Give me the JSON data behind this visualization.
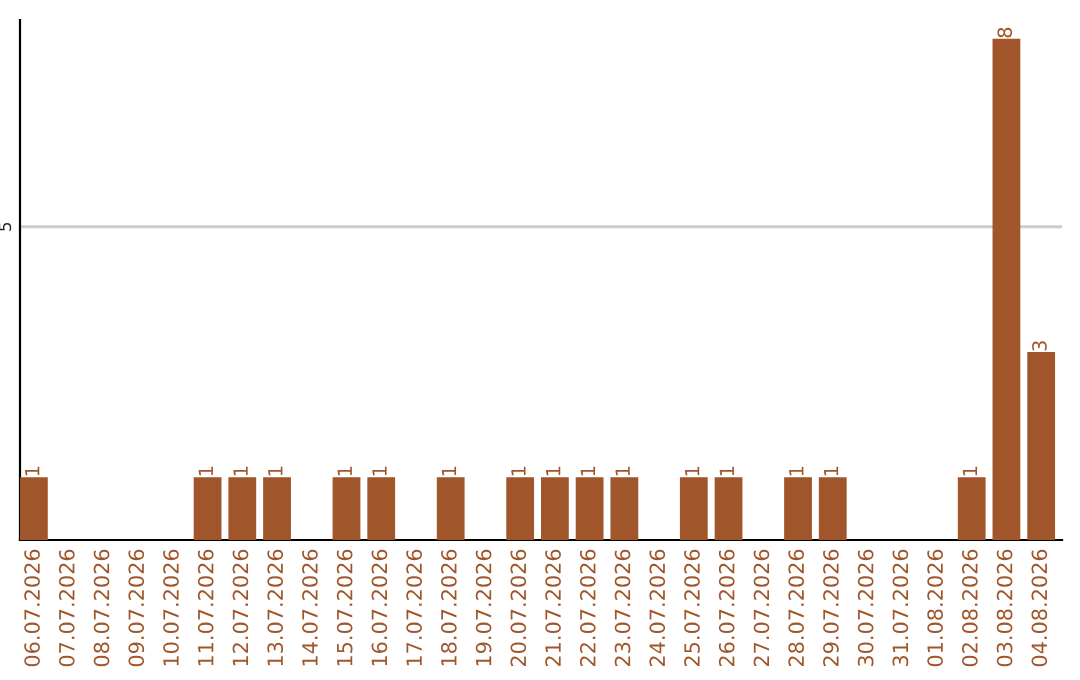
{
  "chart_data": {
    "type": "bar",
    "categories": [
      "06.07.2026",
      "07.07.2026",
      "08.07.2026",
      "09.07.2026",
      "10.07.2026",
      "11.07.2026",
      "12.07.2026",
      "13.07.2026",
      "14.07.2026",
      "15.07.2026",
      "16.07.2026",
      "17.07.2026",
      "18.07.2026",
      "19.07.2026",
      "20.07.2026",
      "21.07.2026",
      "22.07.2026",
      "23.07.2026",
      "24.07.2026",
      "25.07.2026",
      "26.07.2026",
      "27.07.2026",
      "28.07.2026",
      "29.07.2026",
      "30.07.2026",
      "31.07.2026",
      "01.08.2026",
      "02.08.2026",
      "03.08.2026",
      "04.08.2026"
    ],
    "values": [
      1,
      0,
      0,
      0,
      0,
      1,
      1,
      1,
      0,
      1,
      1,
      0,
      1,
      0,
      1,
      1,
      1,
      1,
      0,
      1,
      1,
      0,
      1,
      1,
      0,
      0,
      0,
      1,
      8,
      3
    ],
    "value_labels": [
      "1",
      null,
      null,
      null,
      null,
      "1",
      "1",
      "1",
      null,
      "1",
      "1",
      null,
      "1",
      null,
      "1",
      "1",
      "1",
      "1",
      null,
      "1",
      "1",
      null,
      "1",
      "1",
      null,
      null,
      null,
      "1",
      "8",
      "3"
    ],
    "color": "#a0562a",
    "ylim": [
      0,
      8.3
    ],
    "yticks": [
      5
    ],
    "grid": "y",
    "legend": false
  }
}
